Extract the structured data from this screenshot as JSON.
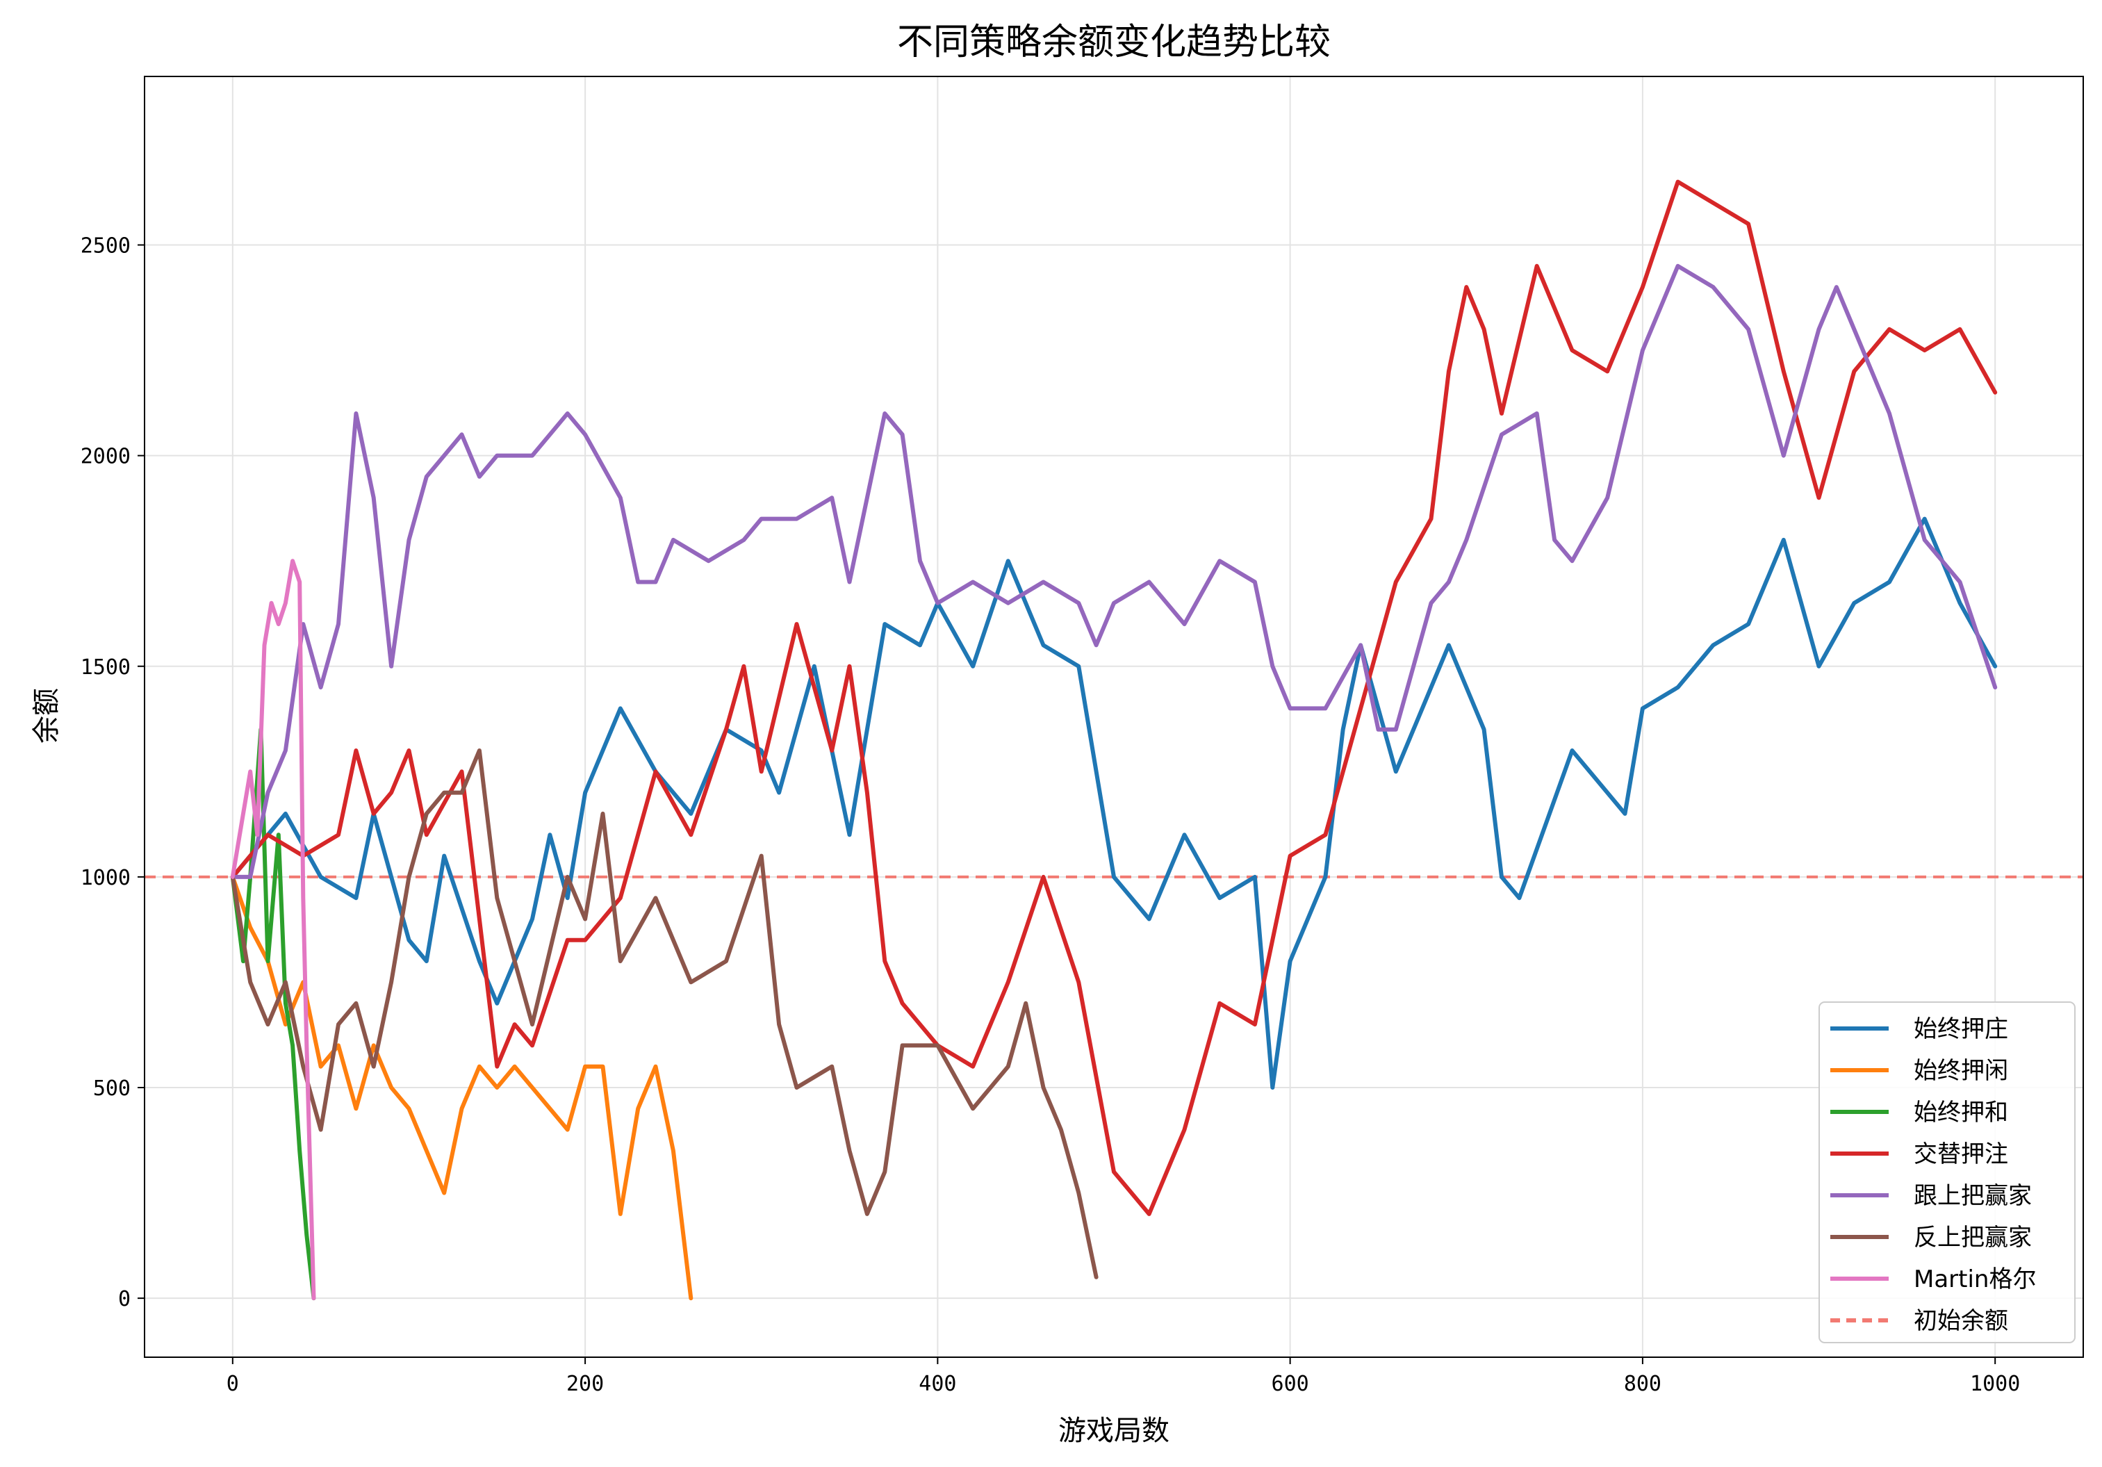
{
  "chart_data": {
    "type": "line",
    "title": "不同策略余额变化趋势比较",
    "xlabel": "游戏局数",
    "ylabel": "余额",
    "xlim": [
      -50,
      1050
    ],
    "ylim": [
      -140,
      2900
    ],
    "xticks": [
      0,
      200,
      400,
      600,
      800,
      1000
    ],
    "yticks": [
      0,
      500,
      1000,
      1500,
      2000,
      2500
    ],
    "grid": true,
    "legend_position": "lower right",
    "reference_line": {
      "name": "初始余额",
      "y": 1000,
      "color": "#f27a72",
      "style": "dashed"
    },
    "series": [
      {
        "name": "始终押庄",
        "color": "#1f77b4",
        "x": [
          0,
          30,
          50,
          70,
          80,
          100,
          110,
          120,
          140,
          150,
          170,
          180,
          190,
          200,
          220,
          240,
          260,
          280,
          300,
          310,
          330,
          350,
          370,
          390,
          400,
          420,
          440,
          460,
          480,
          500,
          520,
          540,
          560,
          580,
          590,
          600,
          620,
          630,
          640,
          660,
          690,
          710,
          720,
          730,
          760,
          790,
          800,
          820,
          840,
          860,
          880,
          900,
          920,
          940,
          960,
          980,
          1000
        ],
        "y": [
          1000,
          1150,
          1000,
          950,
          1150,
          850,
          800,
          1050,
          800,
          700,
          900,
          1100,
          950,
          1200,
          1400,
          1250,
          1150,
          1350,
          1300,
          1200,
          1500,
          1100,
          1600,
          1550,
          1650,
          1500,
          1750,
          1550,
          1500,
          1000,
          900,
          1100,
          950,
          1000,
          500,
          800,
          1000,
          1350,
          1550,
          1250,
          1550,
          1350,
          1000,
          950,
          1300,
          1150,
          1400,
          1450,
          1550,
          1600,
          1800,
          1500,
          1650,
          1700,
          1850,
          1650,
          1500
        ]
      },
      {
        "name": "始终押闲",
        "color": "#ff7f0e",
        "x": [
          0,
          10,
          20,
          30,
          40,
          50,
          60,
          70,
          80,
          90,
          100,
          110,
          120,
          130,
          140,
          150,
          160,
          170,
          180,
          190,
          200,
          210,
          220,
          230,
          240,
          250,
          260
        ],
        "y": [
          1000,
          880,
          800,
          650,
          750,
          550,
          600,
          450,
          600,
          500,
          450,
          350,
          250,
          450,
          550,
          500,
          550,
          500,
          450,
          400,
          550,
          550,
          200,
          450,
          550,
          350,
          0
        ]
      },
      {
        "name": "始终押和",
        "color": "#2ca02c",
        "x": [
          0,
          6,
          10,
          16,
          20,
          26,
          30,
          34,
          38,
          42,
          46
        ],
        "y": [
          1000,
          800,
          1000,
          1350,
          800,
          1100,
          700,
          600,
          350,
          150,
          0
        ]
      },
      {
        "name": "交替押注",
        "color": "#d62728",
        "x": [
          0,
          20,
          40,
          60,
          70,
          80,
          90,
          100,
          110,
          130,
          150,
          160,
          170,
          190,
          200,
          220,
          240,
          260,
          280,
          290,
          300,
          320,
          340,
          350,
          360,
          370,
          380,
          400,
          420,
          440,
          460,
          480,
          500,
          520,
          540,
          560,
          580,
          600,
          620,
          640,
          660,
          680,
          690,
          700,
          710,
          720,
          740,
          760,
          780,
          800,
          820,
          840,
          860,
          880,
          900,
          920,
          940,
          960,
          980,
          1000
        ],
        "y": [
          1000,
          1100,
          1050,
          1100,
          1300,
          1150,
          1200,
          1300,
          1100,
          1250,
          550,
          650,
          600,
          850,
          850,
          950,
          1250,
          1100,
          1350,
          1500,
          1250,
          1600,
          1300,
          1500,
          1200,
          800,
          700,
          600,
          550,
          750,
          1000,
          750,
          300,
          200,
          400,
          700,
          650,
          1050,
          1100,
          1400,
          1700,
          1850,
          2200,
          2400,
          2300,
          2100,
          2450,
          2250,
          2200,
          2400,
          2650,
          2600,
          2550,
          2200,
          1900,
          2200,
          2300,
          2250,
          2300,
          2150
        ]
      },
      {
        "name": "跟上把赢家",
        "color": "#9467bd",
        "x": [
          0,
          10,
          20,
          30,
          40,
          50,
          60,
          70,
          80,
          90,
          100,
          110,
          120,
          130,
          140,
          150,
          170,
          190,
          200,
          220,
          230,
          240,
          250,
          270,
          290,
          300,
          320,
          340,
          350,
          360,
          370,
          380,
          390,
          400,
          420,
          440,
          460,
          480,
          490,
          500,
          520,
          540,
          560,
          580,
          590,
          600,
          620,
          640,
          650,
          660,
          680,
          690,
          700,
          720,
          740,
          750,
          760,
          780,
          800,
          810,
          820,
          840,
          860,
          880,
          900,
          910,
          920,
          940,
          960,
          980,
          1000
        ],
        "y": [
          1000,
          1000,
          1200,
          1300,
          1600,
          1450,
          1600,
          2100,
          1900,
          1500,
          1800,
          1950,
          2000,
          2050,
          1950,
          2000,
          2000,
          2100,
          2050,
          1900,
          1700,
          1700,
          1800,
          1750,
          1800,
          1850,
          1850,
          1900,
          1700,
          1900,
          2100,
          2050,
          1750,
          1650,
          1700,
          1650,
          1700,
          1650,
          1550,
          1650,
          1700,
          1600,
          1750,
          1700,
          1500,
          1400,
          1400,
          1550,
          1350,
          1350,
          1650,
          1700,
          1800,
          2050,
          2100,
          1800,
          1750,
          1900,
          2250,
          2350,
          2450,
          2400,
          2300,
          2000,
          2300,
          2400,
          2300,
          2100,
          1800,
          1700,
          1450
        ]
      },
      {
        "name": "反上把赢家",
        "color": "#8c564b",
        "x": [
          0,
          10,
          20,
          30,
          40,
          50,
          60,
          70,
          80,
          90,
          100,
          110,
          120,
          130,
          140,
          150,
          170,
          190,
          200,
          210,
          220,
          240,
          260,
          280,
          300,
          310,
          320,
          340,
          350,
          360,
          370,
          380,
          400,
          420,
          440,
          450,
          460,
          470,
          480,
          490
        ],
        "y": [
          1000,
          750,
          650,
          750,
          550,
          400,
          650,
          700,
          550,
          750,
          1000,
          1150,
          1200,
          1200,
          1300,
          950,
          650,
          1000,
          900,
          1150,
          800,
          950,
          750,
          800,
          1050,
          650,
          500,
          550,
          350,
          200,
          300,
          600,
          600,
          450,
          550,
          700,
          500,
          400,
          250,
          50
        ]
      },
      {
        "name": "Martin格尔",
        "color": "#e377c2",
        "x": [
          0,
          6,
          10,
          14,
          18,
          22,
          26,
          30,
          34,
          38,
          40,
          42,
          44,
          46
        ],
        "y": [
          1000,
          1150,
          1250,
          1100,
          1550,
          1650,
          1600,
          1650,
          1750,
          1700,
          950,
          600,
          300,
          0
        ]
      }
    ]
  }
}
